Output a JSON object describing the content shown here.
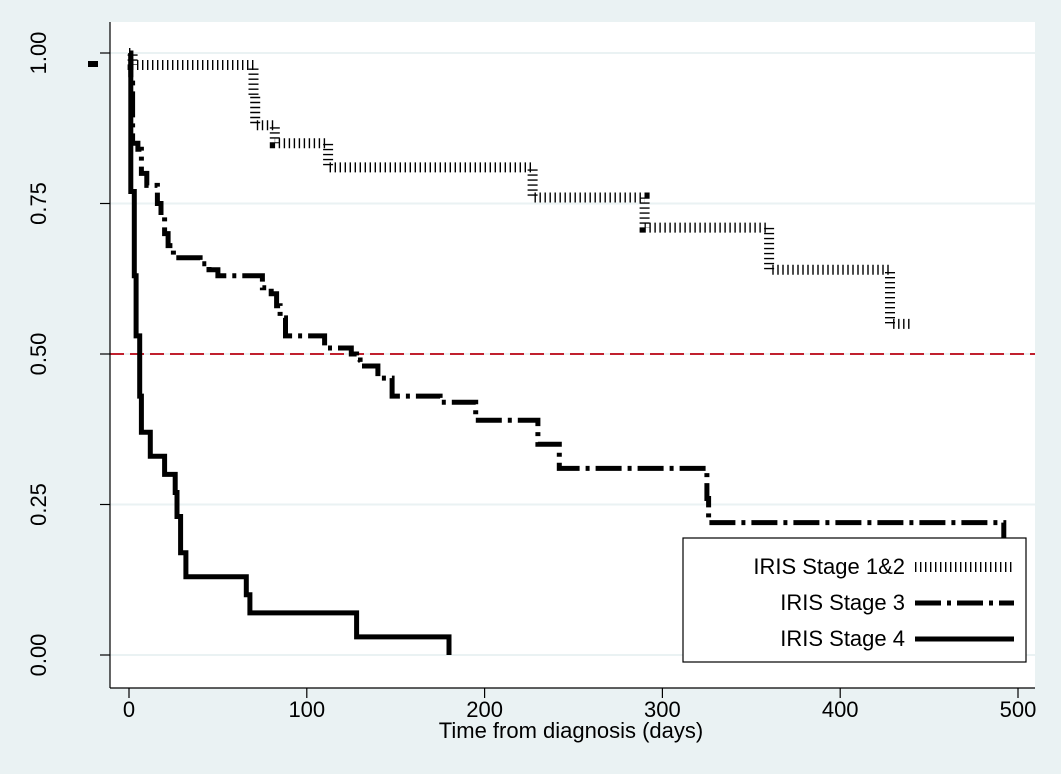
{
  "chart_data": {
    "type": "line",
    "xlabel": "Time from diagnosis (days)",
    "ylabel": "",
    "xlim": [
      -20,
      510
    ],
    "ylim": [
      -0.01,
      1.05
    ],
    "x_ticks": [
      0,
      100,
      200,
      300,
      400,
      500
    ],
    "y_ticks": [
      0,
      0.25,
      0.5,
      0.75,
      1.0
    ],
    "x_tick_labels": [
      "0",
      "100",
      "200",
      "300",
      "400",
      "500"
    ],
    "y_tick_labels": [
      "0.00",
      "0.25",
      "0.50",
      "0.75",
      "1.00"
    ],
    "grid": "horizontal",
    "reference_line": {
      "y": 0.5,
      "color": "#c0202e"
    },
    "legend": {
      "placement": "bottom-right"
    },
    "series": [
      {
        "name": "IRIS Stage 1&2",
        "style": "dotted",
        "color": "#000000",
        "points": [
          [
            0,
            1.0
          ],
          [
            2,
            1.0
          ],
          [
            2,
            0.98
          ],
          [
            70,
            0.98
          ],
          [
            70,
            0.93
          ],
          [
            71,
            0.93
          ],
          [
            71,
            0.88
          ],
          [
            82,
            0.88
          ],
          [
            82,
            0.85
          ],
          [
            112,
            0.85
          ],
          [
            112,
            0.81
          ],
          [
            227,
            0.81
          ],
          [
            227,
            0.76
          ],
          [
            290,
            0.76
          ],
          [
            290,
            0.71
          ],
          [
            360,
            0.71
          ],
          [
            360,
            0.64
          ],
          [
            428,
            0.64
          ],
          [
            428,
            0.55
          ],
          [
            440,
            0.55
          ]
        ]
      },
      {
        "name": "IRIS Stage 3",
        "style": "dash-dot",
        "color": "#000000",
        "points": [
          [
            0,
            1.0
          ],
          [
            1,
            1.0
          ],
          [
            1,
            0.95
          ],
          [
            2,
            0.95
          ],
          [
            2,
            0.85
          ],
          [
            5,
            0.85
          ],
          [
            5,
            0.84
          ],
          [
            7,
            0.84
          ],
          [
            7,
            0.8
          ],
          [
            10,
            0.8
          ],
          [
            10,
            0.78
          ],
          [
            16,
            0.78
          ],
          [
            16,
            0.75
          ],
          [
            18,
            0.75
          ],
          [
            18,
            0.73
          ],
          [
            20,
            0.73
          ],
          [
            20,
            0.7
          ],
          [
            22,
            0.7
          ],
          [
            22,
            0.68
          ],
          [
            25,
            0.68
          ],
          [
            25,
            0.66
          ],
          [
            40,
            0.66
          ],
          [
            40,
            0.65
          ],
          [
            45,
            0.65
          ],
          [
            45,
            0.64
          ],
          [
            50,
            0.64
          ],
          [
            50,
            0.63
          ],
          [
            75,
            0.63
          ],
          [
            75,
            0.61
          ],
          [
            80,
            0.61
          ],
          [
            80,
            0.6
          ],
          [
            83,
            0.6
          ],
          [
            83,
            0.58
          ],
          [
            85,
            0.58
          ],
          [
            85,
            0.56
          ],
          [
            88,
            0.56
          ],
          [
            88,
            0.53
          ],
          [
            110,
            0.53
          ],
          [
            110,
            0.51
          ],
          [
            125,
            0.51
          ],
          [
            125,
            0.5
          ],
          [
            128,
            0.5
          ],
          [
            128,
            0.49
          ],
          [
            130,
            0.49
          ],
          [
            130,
            0.48
          ],
          [
            140,
            0.48
          ],
          [
            140,
            0.46
          ],
          [
            148,
            0.46
          ],
          [
            148,
            0.43
          ],
          [
            175,
            0.43
          ],
          [
            175,
            0.42
          ],
          [
            195,
            0.42
          ],
          [
            195,
            0.39
          ],
          [
            230,
            0.39
          ],
          [
            230,
            0.35
          ],
          [
            242,
            0.35
          ],
          [
            242,
            0.31
          ],
          [
            325,
            0.31
          ],
          [
            325,
            0.26
          ],
          [
            326,
            0.26
          ],
          [
            326,
            0.22
          ],
          [
            492,
            0.22
          ],
          [
            492,
            0.19
          ]
        ]
      },
      {
        "name": "IRIS Stage 4",
        "style": "solid",
        "color": "#000000",
        "points": [
          [
            0,
            1.0
          ],
          [
            1,
            1.0
          ],
          [
            1,
            0.77
          ],
          [
            3,
            0.77
          ],
          [
            3,
            0.63
          ],
          [
            4,
            0.63
          ],
          [
            4,
            0.53
          ],
          [
            6,
            0.53
          ],
          [
            6,
            0.43
          ],
          [
            7,
            0.43
          ],
          [
            7,
            0.37
          ],
          [
            12,
            0.37
          ],
          [
            12,
            0.33
          ],
          [
            20,
            0.33
          ],
          [
            20,
            0.3
          ],
          [
            26,
            0.3
          ],
          [
            26,
            0.27
          ],
          [
            27,
            0.27
          ],
          [
            27,
            0.23
          ],
          [
            29,
            0.23
          ],
          [
            29,
            0.17
          ],
          [
            32,
            0.17
          ],
          [
            32,
            0.13
          ],
          [
            66,
            0.13
          ],
          [
            66,
            0.1
          ],
          [
            68,
            0.1
          ],
          [
            68,
            0.07
          ],
          [
            128,
            0.07
          ],
          [
            128,
            0.03
          ],
          [
            180,
            0.03
          ],
          [
            180,
            0.0
          ]
        ]
      }
    ]
  }
}
